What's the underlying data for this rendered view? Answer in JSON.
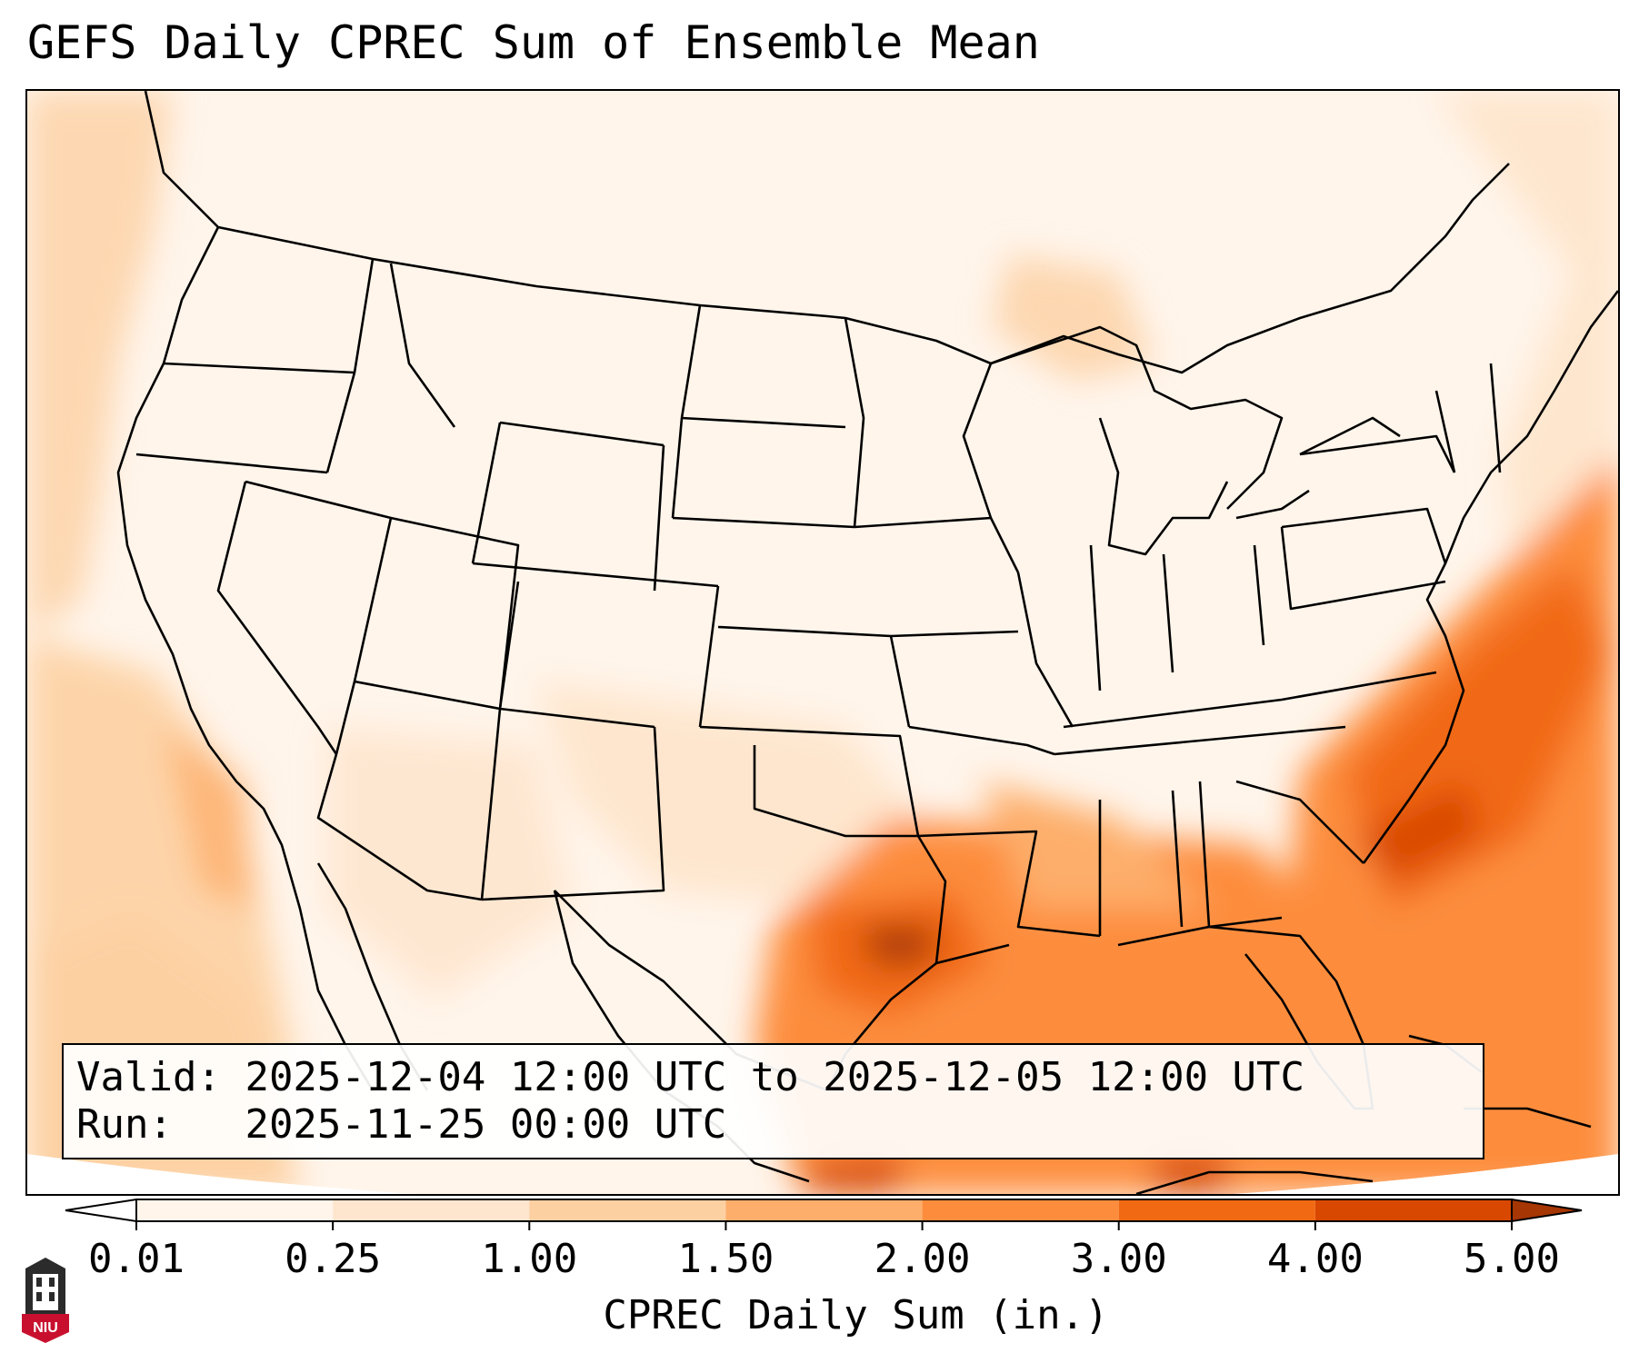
{
  "title": "GEFS Daily CPREC Sum of Ensemble Mean",
  "info": {
    "valid_label": "Valid:",
    "valid_value": "2025-12-04 12:00 UTC to 2025-12-05 12:00 UTC",
    "run_label": "Run:",
    "run_value": "2025-11-25 00:00 UTC"
  },
  "colorbar": {
    "label": "CPREC Daily Sum (in.)",
    "ticks": [
      "0.01",
      "0.25",
      "1.00",
      "1.50",
      "2.00",
      "3.00",
      "4.00",
      "5.00"
    ],
    "colors": [
      "#fff5eb",
      "#fee6ce",
      "#fdd0a2",
      "#fdae6b",
      "#fd8d3c",
      "#f16913",
      "#d94801",
      "#a63603"
    ],
    "extend": "both"
  },
  "logo": {
    "text": "NIU",
    "icon": "niu-university-logo-icon",
    "colors": {
      "shield": "#c8102e",
      "tower": "#2b2b2b"
    }
  },
  "map": {
    "projection": "lambert-conformal",
    "region": "Contiguous United States",
    "field": "CPREC daily sum, ensemble mean",
    "max_area": "Gulf of Mexico / Texas coast",
    "colors": {
      "border": "#000000"
    }
  }
}
